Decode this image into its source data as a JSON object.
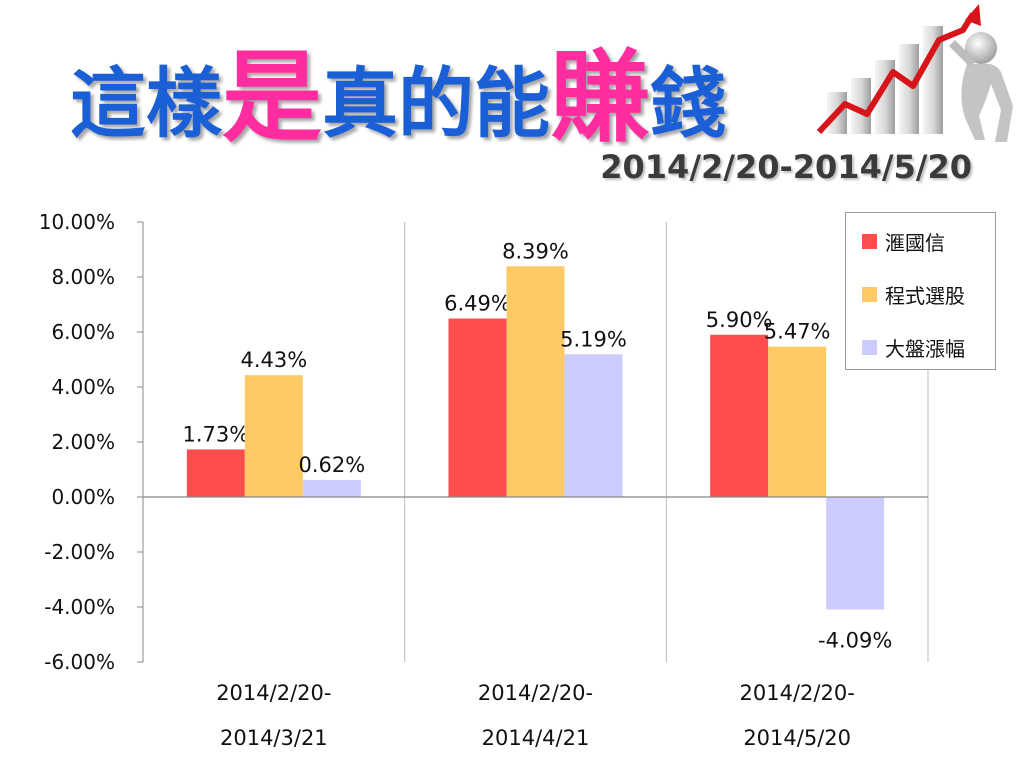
{
  "slide": {
    "title_parts": [
      {
        "text": "這樣",
        "style": "blue"
      },
      {
        "text": "是",
        "style": "pink"
      },
      {
        "text": "真的能",
        "style": "blue"
      },
      {
        "text": "賺",
        "style": "pink"
      },
      {
        "text": "錢",
        "style": "blue"
      }
    ],
    "date_range": "2014/2/20-2014/5/20",
    "logo_icon": "rising-chart-figure-icon"
  },
  "colors": {
    "title_blue": "#1a5fd6",
    "title_pink": "#ff2da0"
  },
  "chart_data": {
    "type": "bar",
    "categories": [
      [
        "2014/2/20-",
        "2014/3/21"
      ],
      [
        "2014/2/20-",
        "2014/4/21"
      ],
      [
        "2014/2/20-",
        "2014/5/20"
      ]
    ],
    "series": [
      {
        "name": "滙國信",
        "values": [
          1.73,
          6.49,
          5.9
        ],
        "labels": [
          "1.73%",
          "6.49%",
          "5.90%"
        ],
        "color": "#ff4d4d"
      },
      {
        "name": "程式選股",
        "values": [
          4.43,
          8.39,
          5.47
        ],
        "labels": [
          "4.43%",
          "8.39%",
          "5.47%"
        ],
        "color": "#ffc966"
      },
      {
        "name": "大盤漲幅",
        "values": [
          0.62,
          5.19,
          -4.09
        ],
        "labels": [
          "0.62%",
          "5.19%",
          "-4.09%"
        ],
        "color": "#ccccff"
      }
    ],
    "ylim": [
      -6,
      10
    ],
    "yticks": [
      10,
      8,
      6,
      4,
      2,
      0,
      -2,
      -4,
      -6
    ],
    "ytick_labels": [
      "10.00%",
      "8.00%",
      "6.00%",
      "4.00%",
      "2.00%",
      "0.00%",
      "-2.00%",
      "-4.00%",
      "-6.00%"
    ],
    "grid": "vertical category dividers",
    "legend_position": "top-right"
  }
}
